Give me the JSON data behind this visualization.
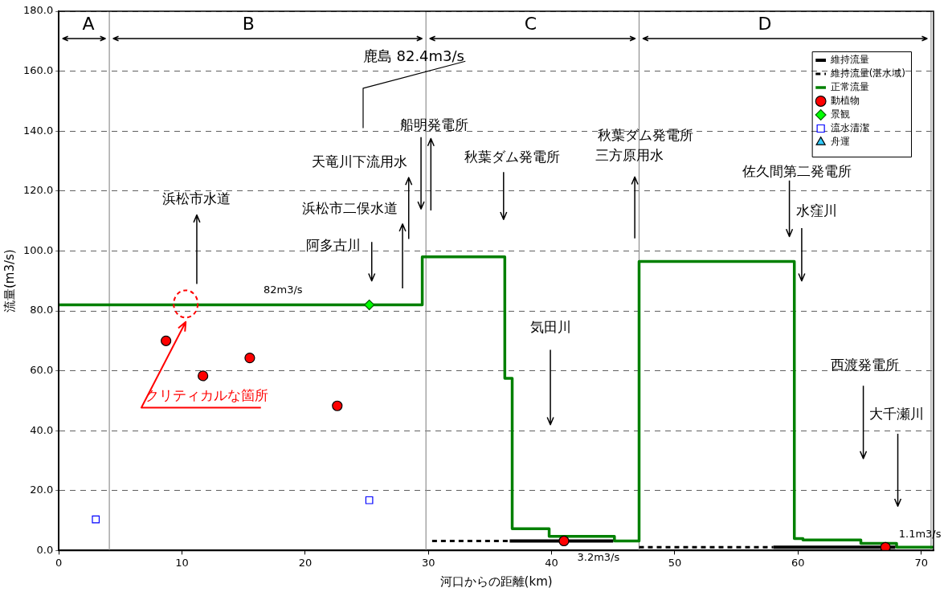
{
  "chart_data": {
    "type": "line",
    "xlabel": "河口からの距離(km)",
    "ylabel": "流量(m3/s)",
    "xlim": [
      0,
      71
    ],
    "xticks": [
      0,
      10,
      20,
      30,
      40,
      50,
      60,
      70
    ],
    "ylim": [
      0,
      180
    ],
    "yticks": [
      {
        "value": 0,
        "label": "0.0"
      },
      {
        "value": 20,
        "label": "20.0"
      },
      {
        "value": 40,
        "label": "40.0"
      },
      {
        "value": 60,
        "label": "60.0"
      },
      {
        "value": 80,
        "label": "80.0"
      },
      {
        "value": 100,
        "label": "100.0"
      },
      {
        "value": 120,
        "label": "120.0"
      },
      {
        "value": 140,
        "label": "140.0"
      },
      {
        "value": 160,
        "label": "160.0"
      },
      {
        "value": 180,
        "label": "180.0"
      }
    ],
    "grid": "y",
    "legend": "top right",
    "series": [
      {
        "name": "維持流量",
        "type": "line",
        "color": "#000000",
        "line_style": "solid",
        "x": [
          36.6,
          45.0,
          51.0,
          58.0,
          67.9
        ],
        "values": [
          3.2,
          3.2,
          null,
          1.1,
          1.1
        ]
      },
      {
        "name": "維持流量(湛水域)",
        "type": "line",
        "color": "#000000",
        "line_style": "dashed",
        "x": [
          30.3,
          36.6,
          42.0,
          47.1,
          58.0
        ],
        "values": [
          3.2,
          3.2,
          null,
          1.1,
          1.1
        ]
      },
      {
        "name": "正常流量",
        "type": "step",
        "color": "#008000",
        "line_style": "solid",
        "x": [
          0,
          29.5,
          36.2,
          36.8,
          39.8,
          45.1,
          47.1,
          59.7,
          60.4,
          65.1,
          68.0,
          71.0
        ],
        "values": [
          82,
          98,
          57.5,
          7.3,
          4.7,
          3.2,
          96.5,
          4.0,
          3.5,
          2.4,
          1.1,
          1.1
        ]
      },
      {
        "name": "動植物",
        "type": "scatter",
        "marker": "circle",
        "color": "#ff0000",
        "x": [
          8.7,
          11.7,
          15.5,
          22.6,
          41.0,
          67.1
        ],
        "values": [
          70.0,
          58.3,
          64.3,
          48.3,
          3.2,
          1.1
        ]
      },
      {
        "name": "景観",
        "type": "scatter",
        "marker": "diamond",
        "color": "#00ff00",
        "x": [
          25.2
        ],
        "values": [
          82
        ]
      },
      {
        "name": "流水清潔",
        "type": "scatter",
        "marker": "square",
        "color": "#0000ff",
        "x": [
          3.0,
          25.2
        ],
        "values": [
          10.4,
          16.8
        ]
      },
      {
        "name": "舟運",
        "type": "scatter",
        "marker": "triangle",
        "color": "#33ccff"
      }
    ],
    "ref_lines": [
      {
        "axis": "x",
        "value": 4.1,
        "color": "#909090"
      },
      {
        "axis": "x",
        "value": 29.8,
        "color": "#909090"
      },
      {
        "axis": "x",
        "value": 47.1,
        "color": "#909090"
      },
      {
        "axis": "x",
        "value": 70.8,
        "color": "#909090"
      }
    ],
    "annotations": [
      "A",
      "B",
      "C",
      "D",
      "鹿島 82.4m3/s",
      "船明発電所",
      "天竜川下流用水",
      "浜松市二俣水道",
      "阿多古川",
      "浜松市水道",
      "秋葉ダム発電所",
      "秋葉ダム発電所",
      "三方原用水",
      "佐久間第二発電所",
      "水窪川",
      "気田川",
      "西渡発電所",
      "大千瀬川",
      "82m3/s",
      "3.2m3/s",
      "1.1m3/s",
      "クリティカルな箇所"
    ]
  }
}
